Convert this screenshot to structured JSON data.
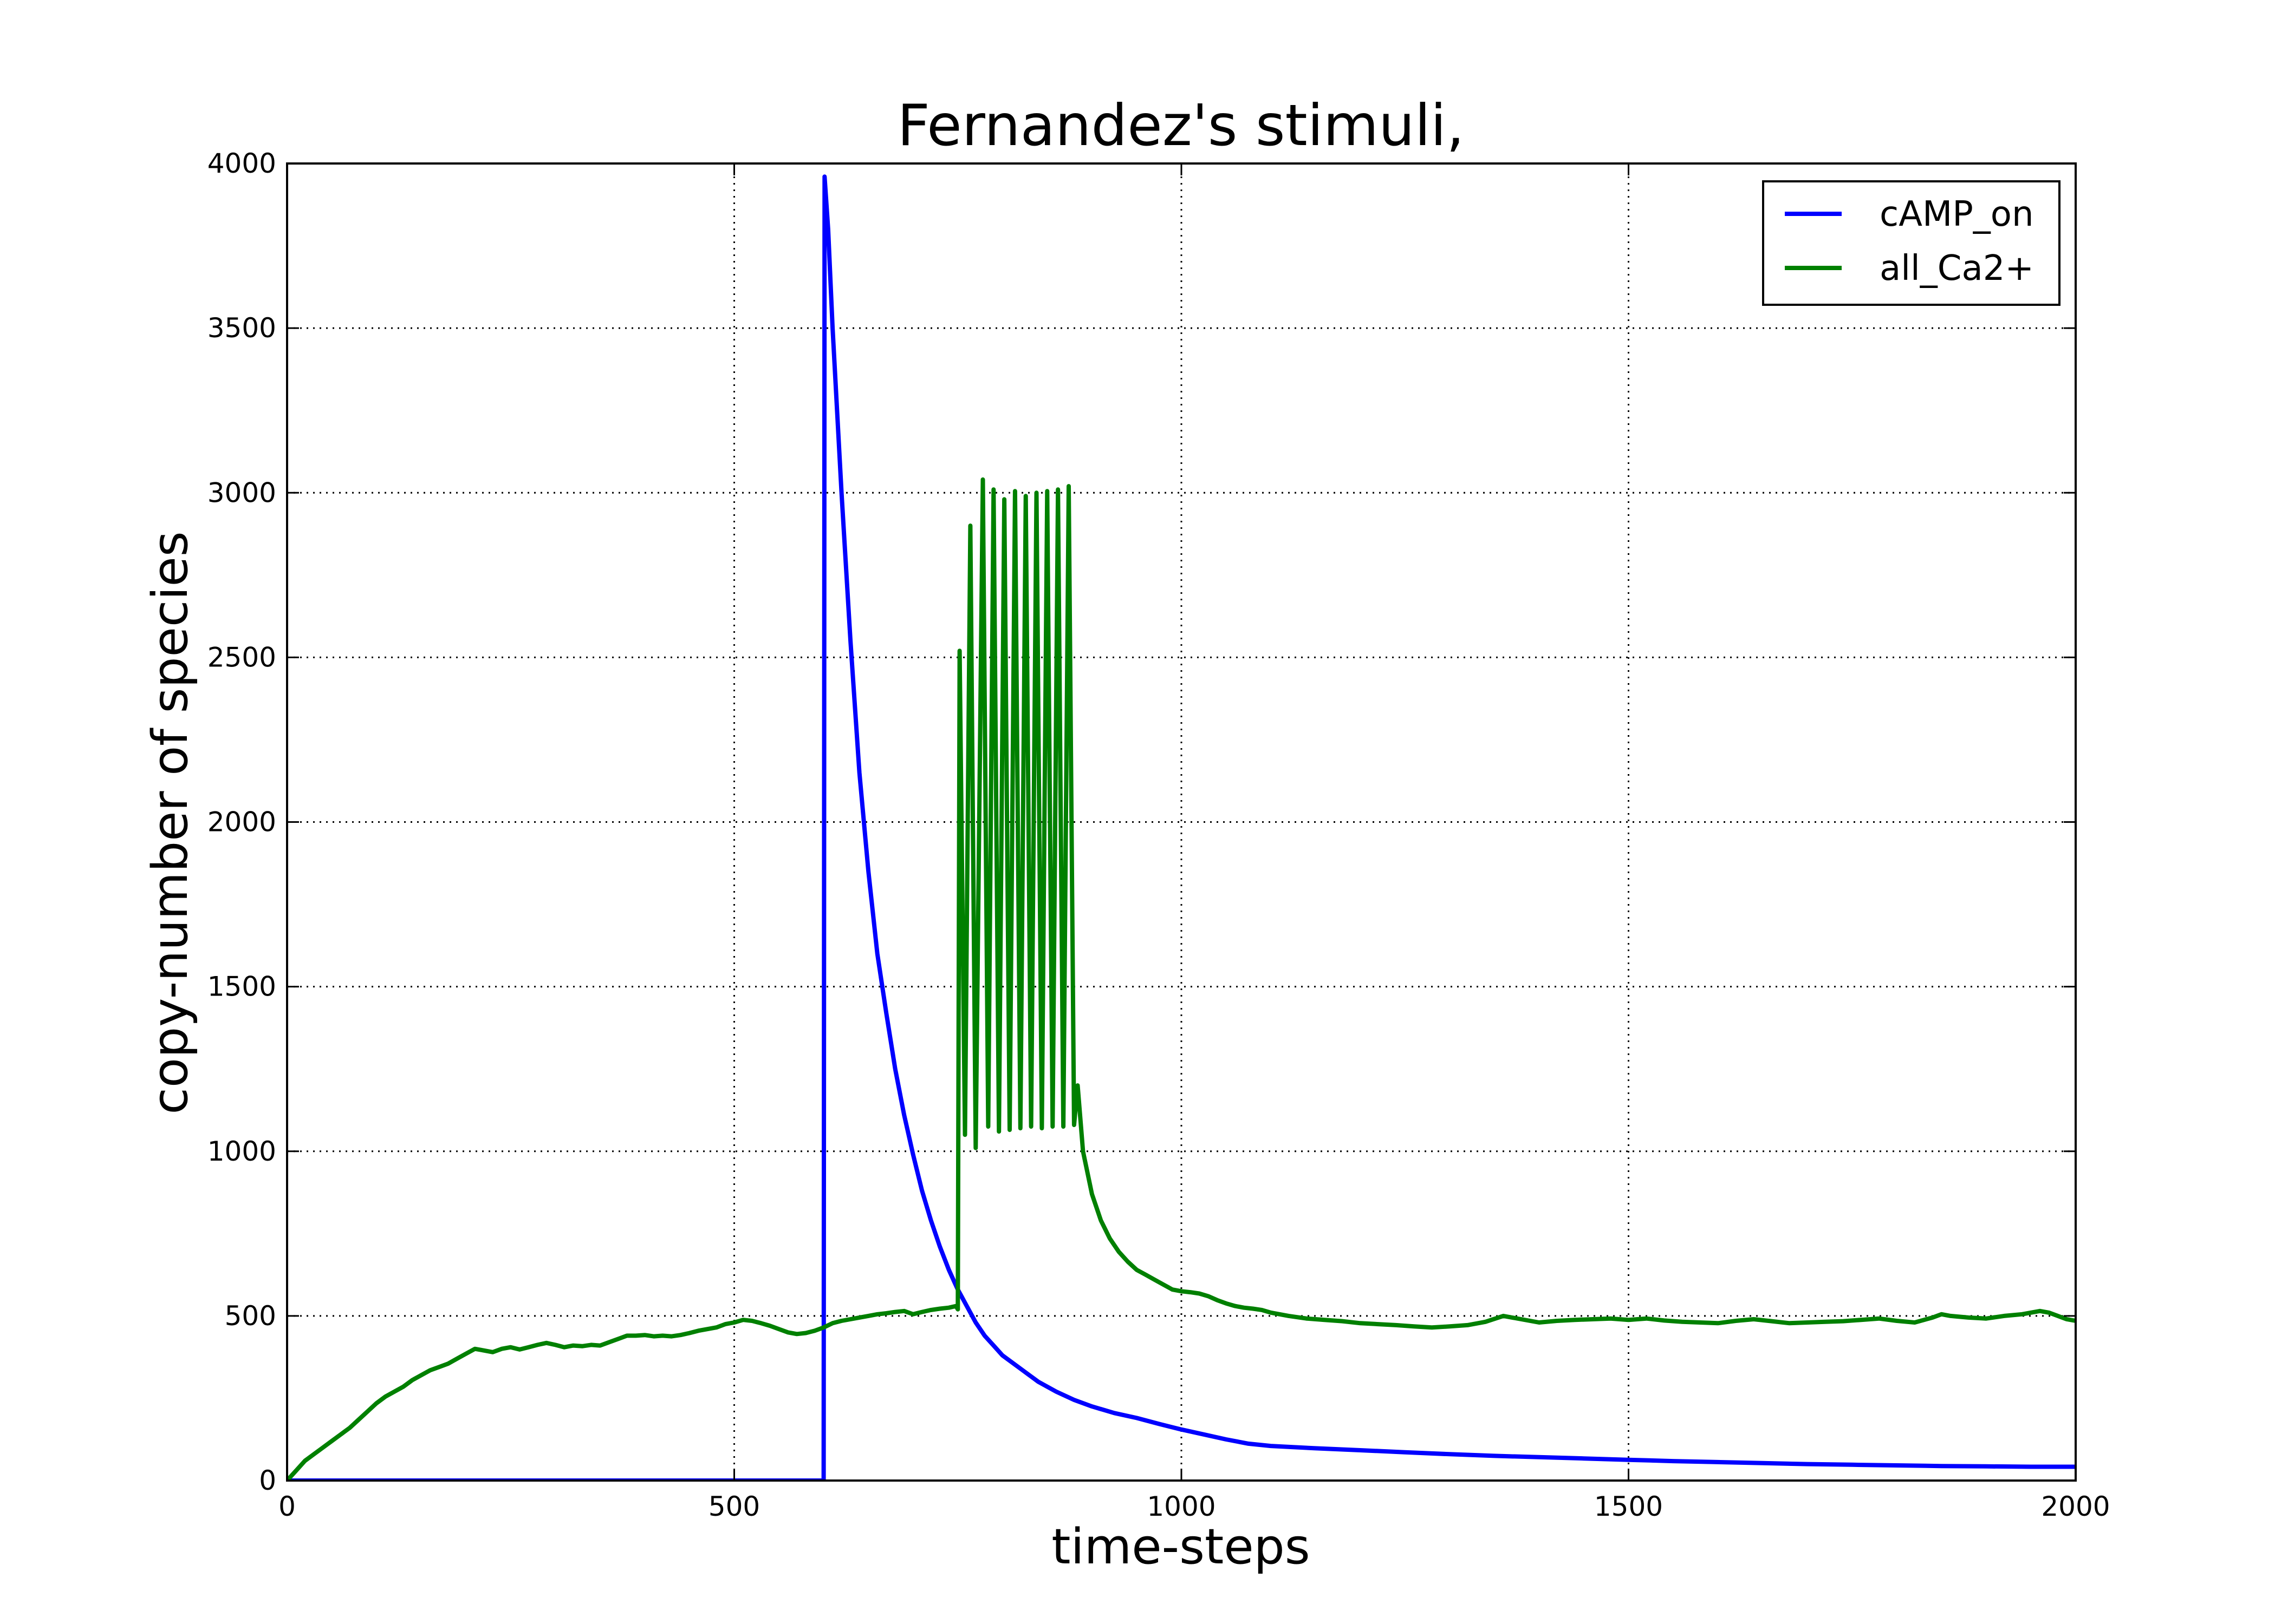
{
  "chart_data": {
    "type": "line",
    "title": "Fernandez's stimuli,",
    "xlabel": "time-steps",
    "ylabel": "copy-number of species",
    "xlim": [
      0,
      2000
    ],
    "ylim": [
      0,
      4000
    ],
    "xticks": [
      0,
      500,
      1000,
      1500,
      2000
    ],
    "yticks": [
      0,
      500,
      1000,
      1500,
      2000,
      2500,
      3000,
      3500,
      4000
    ],
    "xtick_labels": [
      "0",
      "500",
      "1000",
      "1500",
      "2000"
    ],
    "ytick_labels": [
      "0",
      "500",
      "1000",
      "1500",
      "2000",
      "2500",
      "3000",
      "3500",
      "4000"
    ],
    "grid": true,
    "legend_position": "top-right",
    "series": [
      {
        "name": "cAMP_on",
        "color": "#0000ff",
        "points": [
          [
            0,
            0
          ],
          [
            599,
            0
          ],
          [
            600,
            0
          ],
          [
            601,
            3960
          ],
          [
            605,
            3800
          ],
          [
            610,
            3500
          ],
          [
            620,
            3000
          ],
          [
            630,
            2550
          ],
          [
            640,
            2150
          ],
          [
            650,
            1850
          ],
          [
            660,
            1600
          ],
          [
            670,
            1420
          ],
          [
            680,
            1250
          ],
          [
            690,
            1110
          ],
          [
            700,
            990
          ],
          [
            710,
            880
          ],
          [
            720,
            790
          ],
          [
            730,
            710
          ],
          [
            740,
            640
          ],
          [
            750,
            580
          ],
          [
            760,
            530
          ],
          [
            770,
            480
          ],
          [
            780,
            440
          ],
          [
            790,
            410
          ],
          [
            800,
            380
          ],
          [
            820,
            340
          ],
          [
            840,
            300
          ],
          [
            860,
            270
          ],
          [
            880,
            245
          ],
          [
            900,
            225
          ],
          [
            925,
            205
          ],
          [
            950,
            190
          ],
          [
            975,
            172
          ],
          [
            1000,
            155
          ],
          [
            1025,
            140
          ],
          [
            1050,
            125
          ],
          [
            1075,
            112
          ],
          [
            1100,
            105
          ],
          [
            1150,
            98
          ],
          [
            1200,
            92
          ],
          [
            1250,
            86
          ],
          [
            1300,
            80
          ],
          [
            1350,
            75
          ],
          [
            1400,
            71
          ],
          [
            1450,
            67
          ],
          [
            1500,
            63
          ],
          [
            1550,
            59
          ],
          [
            1600,
            56
          ],
          [
            1650,
            53
          ],
          [
            1700,
            50
          ],
          [
            1750,
            48
          ],
          [
            1800,
            46
          ],
          [
            1850,
            44
          ],
          [
            1900,
            43
          ],
          [
            1950,
            42
          ],
          [
            2000,
            42
          ]
        ]
      },
      {
        "name": "all_Ca2+",
        "color": "#008000",
        "points": [
          [
            0,
            0
          ],
          [
            10,
            30
          ],
          [
            20,
            60
          ],
          [
            30,
            80
          ],
          [
            40,
            100
          ],
          [
            50,
            120
          ],
          [
            60,
            140
          ],
          [
            70,
            160
          ],
          [
            80,
            185
          ],
          [
            90,
            210
          ],
          [
            100,
            235
          ],
          [
            110,
            255
          ],
          [
            120,
            270
          ],
          [
            130,
            285
          ],
          [
            140,
            305
          ],
          [
            150,
            320
          ],
          [
            160,
            335
          ],
          [
            170,
            345
          ],
          [
            180,
            355
          ],
          [
            190,
            370
          ],
          [
            200,
            385
          ],
          [
            210,
            400
          ],
          [
            220,
            395
          ],
          [
            230,
            390
          ],
          [
            240,
            400
          ],
          [
            250,
            405
          ],
          [
            260,
            398
          ],
          [
            270,
            405
          ],
          [
            280,
            412
          ],
          [
            290,
            418
          ],
          [
            300,
            412
          ],
          [
            310,
            405
          ],
          [
            320,
            410
          ],
          [
            330,
            408
          ],
          [
            340,
            412
          ],
          [
            350,
            410
          ],
          [
            360,
            420
          ],
          [
            370,
            430
          ],
          [
            380,
            440
          ],
          [
            390,
            440
          ],
          [
            400,
            442
          ],
          [
            410,
            438
          ],
          [
            420,
            440
          ],
          [
            430,
            438
          ],
          [
            440,
            442
          ],
          [
            450,
            448
          ],
          [
            460,
            455
          ],
          [
            470,
            460
          ],
          [
            480,
            465
          ],
          [
            490,
            475
          ],
          [
            500,
            480
          ],
          [
            510,
            488
          ],
          [
            520,
            485
          ],
          [
            530,
            478
          ],
          [
            540,
            470
          ],
          [
            550,
            460
          ],
          [
            560,
            450
          ],
          [
            570,
            445
          ],
          [
            580,
            448
          ],
          [
            590,
            455
          ],
          [
            600,
            465
          ],
          [
            610,
            478
          ],
          [
            620,
            485
          ],
          [
            630,
            490
          ],
          [
            640,
            495
          ],
          [
            650,
            500
          ],
          [
            660,
            505
          ],
          [
            670,
            508
          ],
          [
            680,
            512
          ],
          [
            690,
            515
          ],
          [
            700,
            505
          ],
          [
            710,
            512
          ],
          [
            720,
            518
          ],
          [
            730,
            522
          ],
          [
            740,
            525
          ],
          [
            748,
            530
          ],
          [
            750,
            520
          ],
          [
            752,
            2520
          ],
          [
            758,
            1050
          ],
          [
            764,
            2900
          ],
          [
            770,
            1010
          ],
          [
            778,
            3040
          ],
          [
            784,
            1075
          ],
          [
            790,
            3010
          ],
          [
            796,
            1060
          ],
          [
            802,
            2980
          ],
          [
            808,
            1065
          ],
          [
            814,
            3005
          ],
          [
            820,
            1070
          ],
          [
            826,
            2990
          ],
          [
            832,
            1075
          ],
          [
            838,
            3000
          ],
          [
            844,
            1070
          ],
          [
            850,
            3005
          ],
          [
            856,
            1075
          ],
          [
            862,
            3010
          ],
          [
            868,
            1075
          ],
          [
            874,
            3020
          ],
          [
            880,
            1080
          ],
          [
            884,
            1200
          ],
          [
            890,
            1000
          ],
          [
            900,
            870
          ],
          [
            910,
            790
          ],
          [
            920,
            735
          ],
          [
            930,
            695
          ],
          [
            940,
            665
          ],
          [
            950,
            640
          ],
          [
            960,
            625
          ],
          [
            970,
            610
          ],
          [
            980,
            595
          ],
          [
            990,
            580
          ],
          [
            1000,
            575
          ],
          [
            1010,
            572
          ],
          [
            1020,
            568
          ],
          [
            1030,
            560
          ],
          [
            1040,
            548
          ],
          [
            1050,
            538
          ],
          [
            1060,
            530
          ],
          [
            1070,
            525
          ],
          [
            1080,
            522
          ],
          [
            1090,
            518
          ],
          [
            1100,
            510
          ],
          [
            1120,
            500
          ],
          [
            1140,
            492
          ],
          [
            1160,
            488
          ],
          [
            1180,
            484
          ],
          [
            1200,
            478
          ],
          [
            1220,
            475
          ],
          [
            1240,
            472
          ],
          [
            1260,
            468
          ],
          [
            1280,
            465
          ],
          [
            1300,
            468
          ],
          [
            1320,
            472
          ],
          [
            1340,
            482
          ],
          [
            1360,
            500
          ],
          [
            1380,
            490
          ],
          [
            1400,
            480
          ],
          [
            1420,
            485
          ],
          [
            1440,
            488
          ],
          [
            1460,
            490
          ],
          [
            1480,
            492
          ],
          [
            1500,
            488
          ],
          [
            1520,
            492
          ],
          [
            1540,
            486
          ],
          [
            1560,
            482
          ],
          [
            1580,
            480
          ],
          [
            1600,
            478
          ],
          [
            1620,
            485
          ],
          [
            1640,
            490
          ],
          [
            1660,
            484
          ],
          [
            1680,
            478
          ],
          [
            1700,
            480
          ],
          [
            1720,
            482
          ],
          [
            1740,
            484
          ],
          [
            1760,
            488
          ],
          [
            1780,
            492
          ],
          [
            1800,
            485
          ],
          [
            1820,
            480
          ],
          [
            1840,
            495
          ],
          [
            1850,
            505
          ],
          [
            1860,
            500
          ],
          [
            1880,
            495
          ],
          [
            1900,
            492
          ],
          [
            1920,
            500
          ],
          [
            1940,
            505
          ],
          [
            1960,
            515
          ],
          [
            1970,
            510
          ],
          [
            1980,
            500
          ],
          [
            1990,
            490
          ],
          [
            2000,
            485
          ]
        ]
      }
    ]
  }
}
